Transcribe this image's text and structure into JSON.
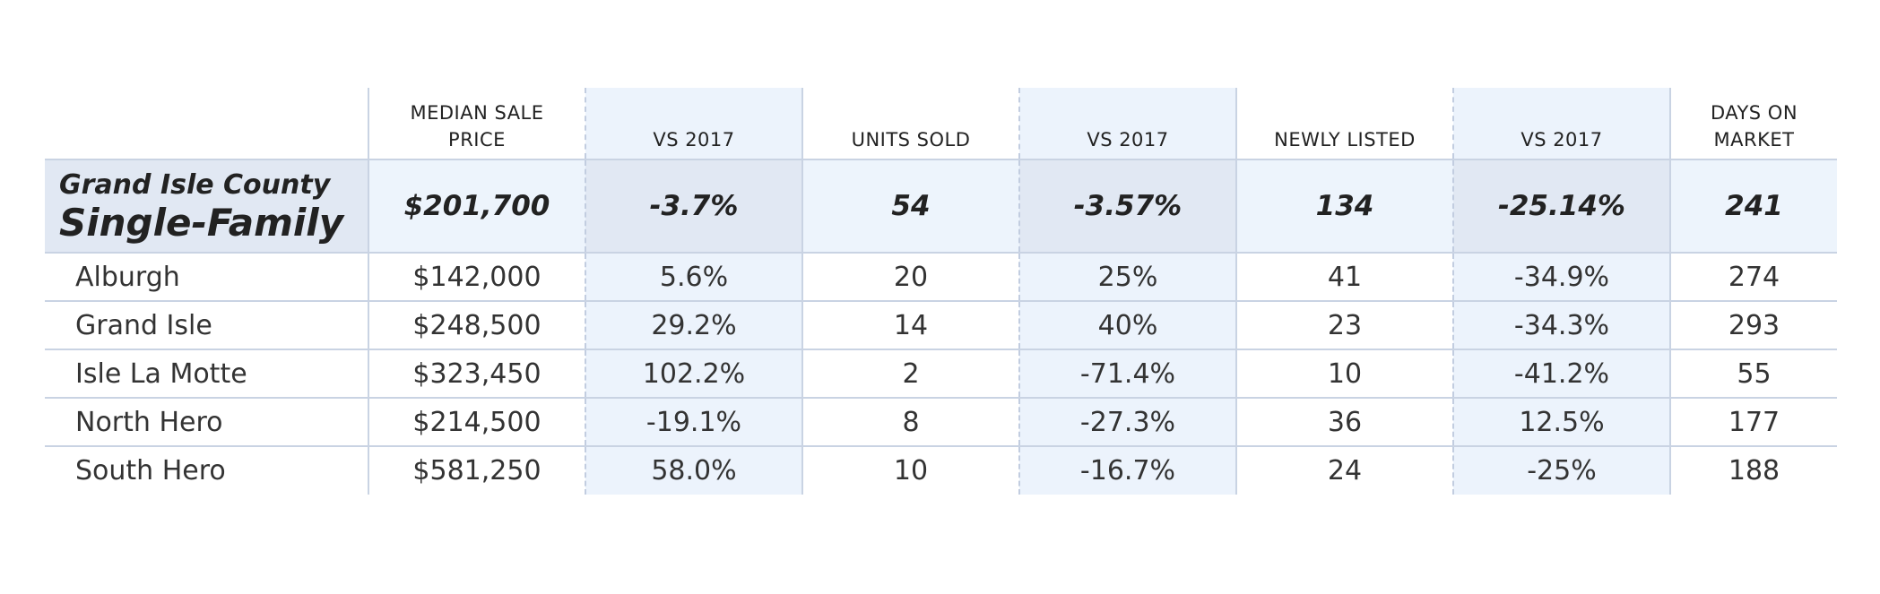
{
  "headers": {
    "median_sale_price": "MEDIAN SALE\nPRICE",
    "median_line1": "MEDIAN SALE",
    "median_line2": "PRICE",
    "vs_2017_price": "VS 2017",
    "units_sold": "UNITS SOLD",
    "vs_2017_units": "VS 2017",
    "newly_listed": "NEWLY LISTED",
    "vs_2017_listed": "VS 2017",
    "days_line1": "DAYS ON",
    "days_line2": "MARKET"
  },
  "county": {
    "name": "Grand Isle County",
    "type": "Single-Family",
    "median_sale_price": "$201,700",
    "price_vs_2017": "-3.7%",
    "units_sold": "54",
    "units_vs_2017": "-3.57%",
    "newly_listed": "134",
    "listed_vs_2017": "-25.14%",
    "days_on_market": "241"
  },
  "towns": [
    {
      "name": "Alburgh",
      "median_sale_price": "$142,000",
      "price_vs_2017": "5.6%",
      "units_sold": "20",
      "units_vs_2017": "25%",
      "newly_listed": "41",
      "listed_vs_2017": "-34.9%",
      "days_on_market": "274"
    },
    {
      "name": "Grand Isle",
      "median_sale_price": "$248,500",
      "price_vs_2017": "29.2%",
      "units_sold": "14",
      "units_vs_2017": "40%",
      "newly_listed": "23",
      "listed_vs_2017": "-34.3%",
      "days_on_market": "293"
    },
    {
      "name": "Isle La Motte",
      "median_sale_price": "$323,450",
      "price_vs_2017": "102.2%",
      "units_sold": "2",
      "units_vs_2017": "-71.4%",
      "newly_listed": "10",
      "listed_vs_2017": "-41.2%",
      "days_on_market": "55"
    },
    {
      "name": "North Hero",
      "median_sale_price": "$214,500",
      "price_vs_2017": "-19.1%",
      "units_sold": "8",
      "units_vs_2017": "-27.3%",
      "newly_listed": "36",
      "listed_vs_2017": "12.5%",
      "days_on_market": "177"
    },
    {
      "name": "South Hero",
      "median_sale_price": "$581,250",
      "price_vs_2017": "58.0%",
      "units_sold": "10",
      "units_vs_2017": "-16.7%",
      "newly_listed": "24",
      "listed_vs_2017": "-25%",
      "days_on_market": "188"
    }
  ]
}
